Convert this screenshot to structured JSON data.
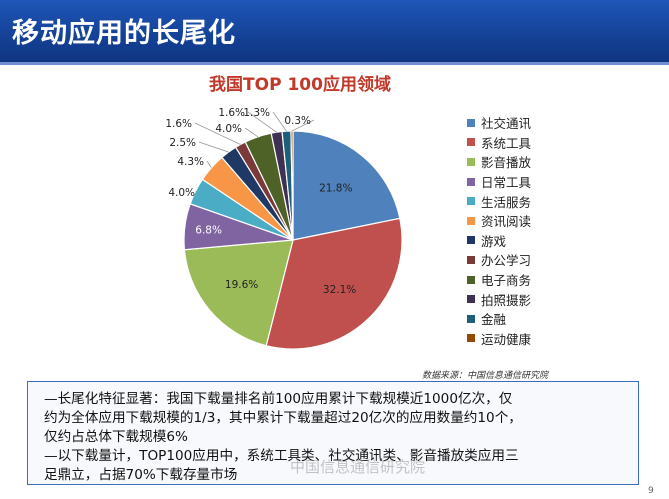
{
  "header": {
    "title": "移动应用的长尾化"
  },
  "chart_data": {
    "type": "pie",
    "title": "我国TOP 100应用领域",
    "categories": [
      "社交通讯",
      "系统工具",
      "影音播放",
      "日常工具",
      "生活服务",
      "资讯阅读",
      "游戏",
      "办公学习",
      "电子商务",
      "拍照摄影",
      "金融",
      "运动健康"
    ],
    "values": [
      21.8,
      32.1,
      19.6,
      6.8,
      4.0,
      4.3,
      2.5,
      1.6,
      4.0,
      1.6,
      1.3,
      0.3
    ],
    "labels": [
      "21.8%",
      "32.1%",
      "19.6%",
      "6.8%",
      "4.0%",
      "4.3%",
      "2.5%",
      "1.6%",
      "4.0%",
      "1.6%",
      "1.3%",
      "0.3%"
    ],
    "colors": [
      "#4f81bd",
      "#c0504d",
      "#9bbb59",
      "#8064a2",
      "#4bacc6",
      "#f79646",
      "#1f3864",
      "#7b3a3a",
      "#4e6228",
      "#3f3151",
      "#1f5f7a",
      "#974806"
    ],
    "legend_position": "right"
  },
  "source": "数据来源：中国信息通信研究院",
  "notes": [
    "—长尾化特征显著：我国下载量排名前100应用累计下载规模近1000亿次，仅",
    "约为全体应用下载规模的1/3，其中累计下载量超过20亿次的应用数量约10个，",
    "仅约占总体下载规模6%",
    "—以下载量计，TOP100应用中，系统工具类、社交通讯类、影音播放类应用三",
    "足鼎立，占据70%下载存量市场"
  ],
  "watermark": "中国信息通信研究院",
  "page_number": "9"
}
